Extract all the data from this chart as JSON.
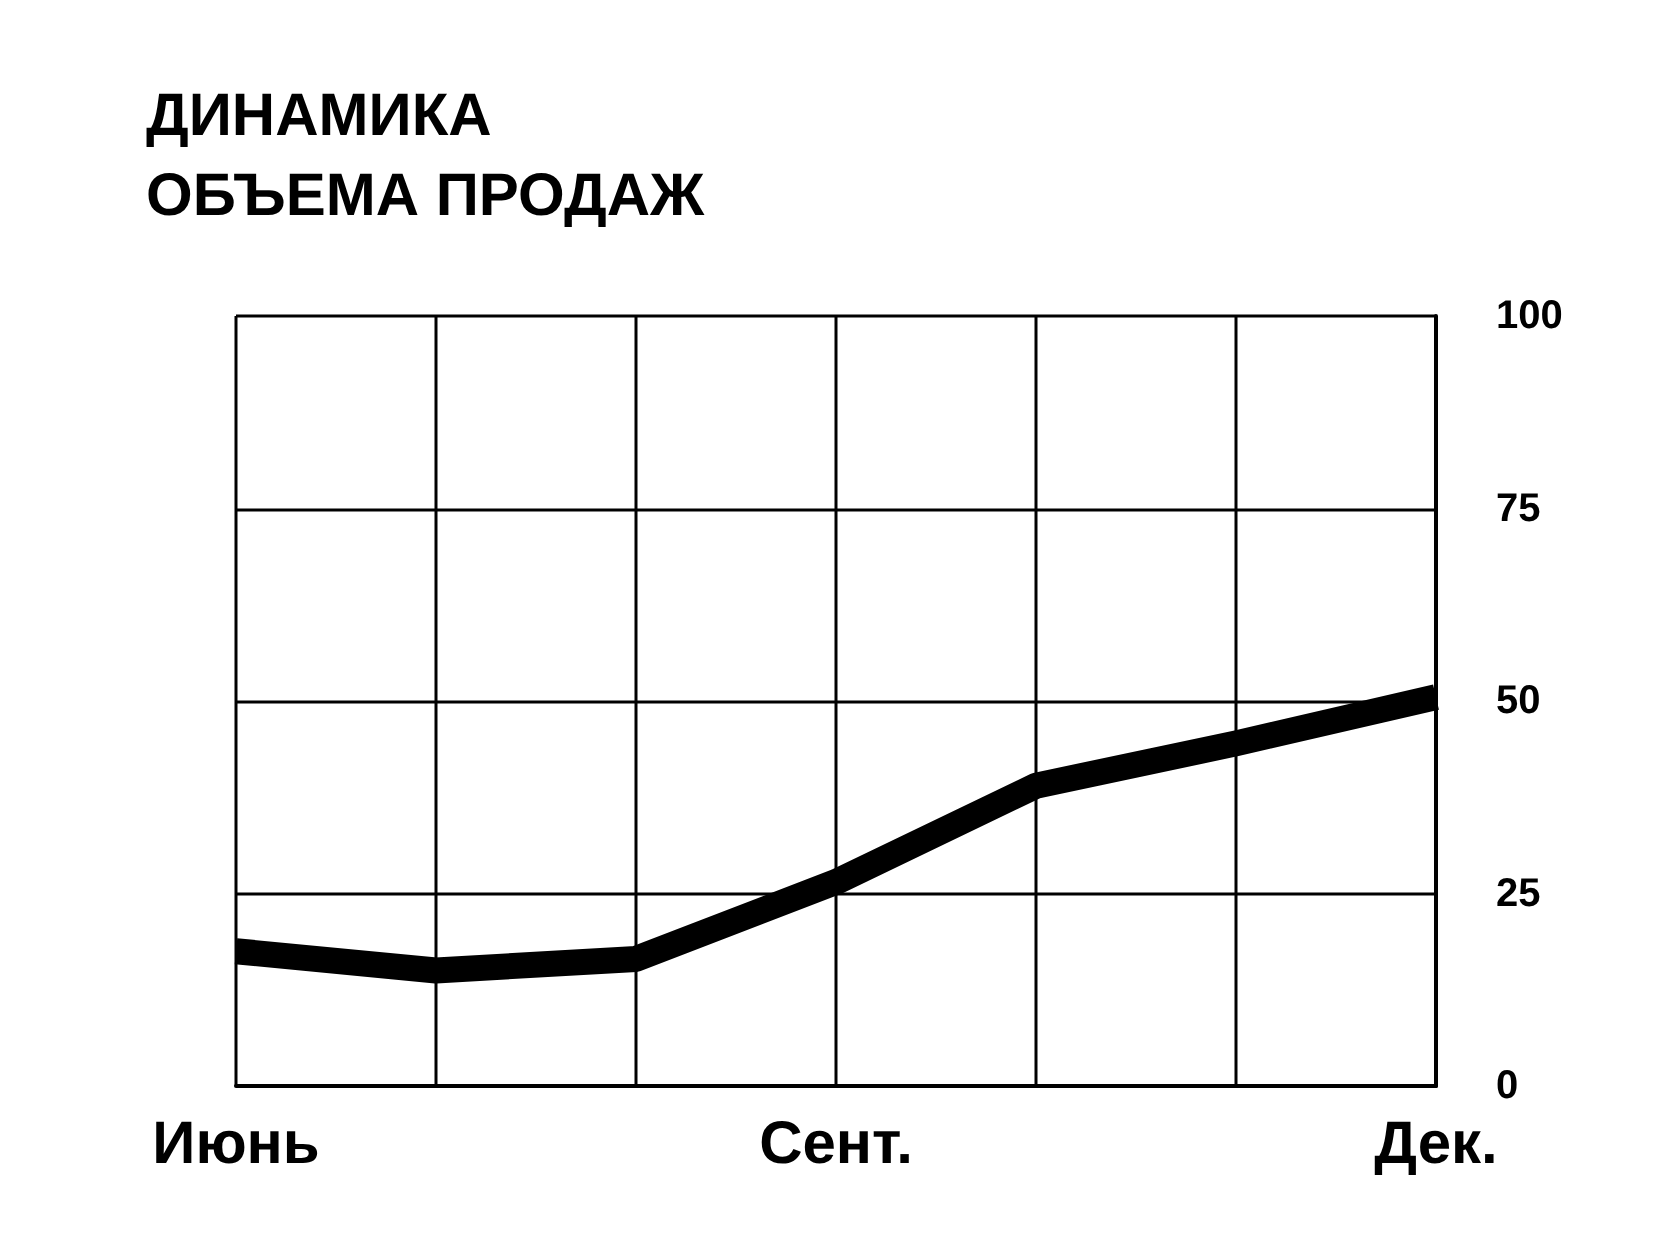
{
  "chart_data": {
    "type": "line",
    "title": "ДИНАМИКА ОБЪЕМА ПРОДАЖ",
    "categories": [
      "Июнь",
      null,
      null,
      "Сент.",
      null,
      null,
      "Дек."
    ],
    "series": [
      {
        "color": "#000000",
        "values": [
          17.5,
          15,
          16.5,
          26.5,
          39,
          44.5,
          50.5
        ]
      }
    ],
    "ylim": [
      0,
      100
    ],
    "yticks": [
      0,
      25,
      50,
      75,
      100
    ],
    "grid": true,
    "marker": "none"
  }
}
